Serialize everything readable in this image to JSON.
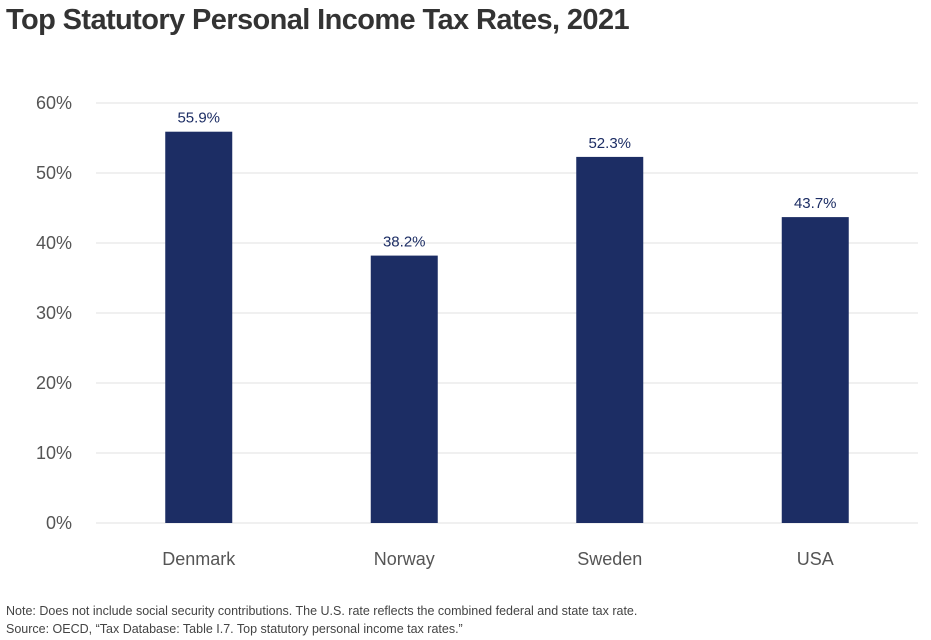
{
  "chart_data": {
    "type": "bar",
    "title": "Top Statutory Personal Income Tax Rates, 2021",
    "categories": [
      "Denmark",
      "Norway",
      "Sweden",
      "USA"
    ],
    "values": [
      55.9,
      38.2,
      52.3,
      43.7
    ],
    "data_labels": [
      "55.9%",
      "38.2%",
      "52.3%",
      "43.7%"
    ],
    "xlabel": "",
    "ylabel": "",
    "ylim": [
      0,
      60
    ],
    "yticks": [
      0,
      10,
      20,
      30,
      40,
      50,
      60
    ],
    "ytick_labels": [
      "0%",
      "10%",
      "20%",
      "30%",
      "40%",
      "50%",
      "60%"
    ],
    "grid": true,
    "legend": "none"
  },
  "colors": {
    "bar": "#1c2d64",
    "label": "#1c2d64",
    "grid": "#e0e0e0",
    "axis_text": "#555555"
  },
  "notes": {
    "note": "Note: Does not include social security contributions. The U.S. rate reflects the combined federal and state tax rate.",
    "source": "Source: OECD, “Tax Database: Table I.7. Top statutory personal income tax rates.”"
  }
}
